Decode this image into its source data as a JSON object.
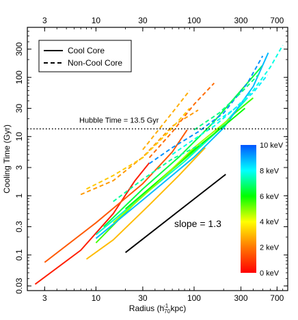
{
  "chart_data": {
    "type": "line",
    "xscale": "log",
    "yscale": "log",
    "xlabel": "Radius (h",
    "xlabel_sub": "70",
    "xlabel_sup": "-1",
    "xlabel_tail": " kpc)",
    "ylabel": "Cooling Time (Gyr)",
    "xlim": [
      2,
      900
    ],
    "ylim": [
      0.025,
      700
    ],
    "xticks": [
      3,
      10,
      30,
      100,
      300,
      700
    ],
    "yticks": [
      0.03,
      0.1,
      0.3,
      1,
      3,
      10,
      30,
      100,
      300
    ],
    "legend": {
      "position": "top-left",
      "entries": [
        {
          "label": "Cool Core",
          "style": "solid"
        },
        {
          "label": "Non-Cool Core",
          "style": "dashed"
        }
      ]
    },
    "hline": {
      "y": 13.5,
      "label": "Hubble Time = 13.5 Gyr",
      "style": "dotted"
    },
    "slope_line": {
      "x": [
        20,
        210
      ],
      "y": [
        0.11,
        2.3
      ],
      "label": "slope = 1.3"
    },
    "colorbar": {
      "label_suffix": " keV",
      "ticks": [
        0,
        2,
        4,
        6,
        8,
        10
      ],
      "tick_labels": [
        "0 keV",
        "2 keV",
        "4 keV",
        "6 keV",
        "8 keV",
        "10 keV"
      ],
      "min": 0,
      "max": 10,
      "colors": [
        "#ff0000",
        "#ff7700",
        "#ffff00",
        "#00ff00",
        "#00ffff",
        "#0055ff"
      ]
    },
    "series": [
      {
        "temp": 0.5,
        "dash": false,
        "x": [
          2.4,
          7,
          15,
          25,
          35
        ],
        "y": [
          0.032,
          0.12,
          0.5,
          1.8,
          3.6
        ]
      },
      {
        "temp": 1.5,
        "dash": false,
        "x": [
          3,
          10,
          30,
          60,
          85
        ],
        "y": [
          0.075,
          0.35,
          1.6,
          5.5,
          13
        ]
      },
      {
        "temp": 3.0,
        "dash": false,
        "x": [
          8,
          15,
          35,
          70,
          130
        ],
        "y": [
          0.085,
          0.18,
          0.7,
          2.2,
          6.5
        ]
      },
      {
        "temp": 5.5,
        "dash": false,
        "x": [
          10,
          25,
          60,
          150,
          260,
          400
        ],
        "y": [
          0.16,
          0.75,
          2.8,
          10,
          25,
          45
        ]
      },
      {
        "temp": 6.5,
        "dash": false,
        "x": [
          12,
          30,
          70,
          150,
          300,
          500
        ],
        "y": [
          0.3,
          1.3,
          4.5,
          16,
          60,
          160
        ]
      },
      {
        "temp": 7.5,
        "dash": false,
        "x": [
          10,
          30,
          80,
          170,
          350
        ],
        "y": [
          0.22,
          1.0,
          3.8,
          12,
          45
        ]
      },
      {
        "temp": 8.8,
        "dash": false,
        "x": [
          10,
          30,
          100,
          200,
          400,
          570
        ],
        "y": [
          0.19,
          0.85,
          4.5,
          14,
          70,
          260
        ]
      },
      {
        "temp": 6.0,
        "dash": false,
        "x": [
          20,
          50,
          100,
          200,
          330
        ],
        "y": [
          0.6,
          2.2,
          6,
          15,
          30
        ]
      },
      {
        "temp": 4.8,
        "dash": false,
        "x": [
          15,
          40,
          100,
          230
        ],
        "y": [
          0.35,
          1.5,
          6.5,
          20
        ]
      },
      {
        "temp": 2.5,
        "dash": true,
        "x": [
          7,
          15,
          30,
          60,
          110
        ],
        "y": [
          1.05,
          1.8,
          4.5,
          15,
          28
        ]
      },
      {
        "temp": 3.2,
        "dash": true,
        "x": [
          8,
          15,
          30,
          55,
          90
        ],
        "y": [
          1.3,
          2.2,
          4.4,
          12,
          30
        ]
      },
      {
        "temp": 2.8,
        "dash": true,
        "x": [
          30,
          45,
          65,
          90
        ],
        "y": [
          6,
          14,
          30,
          60
        ]
      },
      {
        "temp": 1.8,
        "dash": true,
        "x": [
          35,
          60,
          100,
          160
        ],
        "y": [
          4.4,
          12,
          35,
          80
        ]
      },
      {
        "temp": 7.2,
        "dash": true,
        "x": [
          15,
          30,
          60,
          120
        ],
        "y": [
          0.8,
          1.9,
          4.2,
          7.5
        ]
      },
      {
        "temp": 9.3,
        "dash": true,
        "x": [
          35,
          60,
          110,
          200,
          350,
          500
        ],
        "y": [
          3.5,
          6.5,
          12,
          25,
          80,
          230
        ]
      },
      {
        "temp": 7.8,
        "dash": true,
        "x": [
          60,
          100,
          160,
          250,
          400,
          600,
          800
        ],
        "y": [
          5,
          9,
          15,
          28,
          60,
          150,
          350
        ]
      },
      {
        "temp": 7.0,
        "dash": true,
        "x": [
          100,
          180,
          300,
          450
        ],
        "y": [
          13,
          25,
          55,
          110
        ]
      },
      {
        "temp": 8.2,
        "dash": true,
        "x": [
          150,
          250,
          400,
          560
        ],
        "y": [
          16,
          28,
          55,
          110
        ]
      }
    ]
  }
}
